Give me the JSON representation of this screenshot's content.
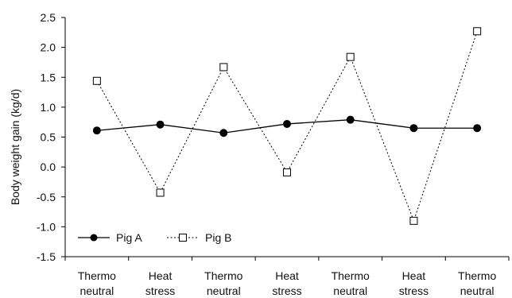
{
  "chart_data": {
    "type": "line",
    "categories": [
      [
        "Thermo",
        "neutral"
      ],
      [
        "Heat",
        "stress"
      ],
      [
        "Thermo",
        "neutral"
      ],
      [
        "Heat",
        "stress"
      ],
      [
        "Thermo",
        "neutral"
      ],
      [
        "Heat",
        "stress"
      ],
      [
        "Thermo",
        "neutral"
      ]
    ],
    "series": [
      {
        "name": "Pig A",
        "values": [
          0.61,
          0.71,
          0.57,
          0.72,
          0.79,
          0.65,
          0.65
        ],
        "style": "solid",
        "marker": "filled-circle",
        "color": "#000000"
      },
      {
        "name": "Pig B",
        "values": [
          1.44,
          -0.43,
          1.67,
          -0.09,
          1.84,
          -0.9,
          2.27
        ],
        "style": "dotted",
        "marker": "open-square",
        "color": "#000000"
      }
    ],
    "title": "",
    "xlabel": "",
    "ylabel": "Body weight gain (kg/d)",
    "ylim": [
      -1.5,
      2.5
    ],
    "yticks": [
      "-1.5",
      "-1.0",
      "-0.5",
      "0.0",
      "0.5",
      "1.0",
      "1.5",
      "2.0",
      "2.5"
    ],
    "grid": false,
    "legend_position": "bottom-left"
  }
}
